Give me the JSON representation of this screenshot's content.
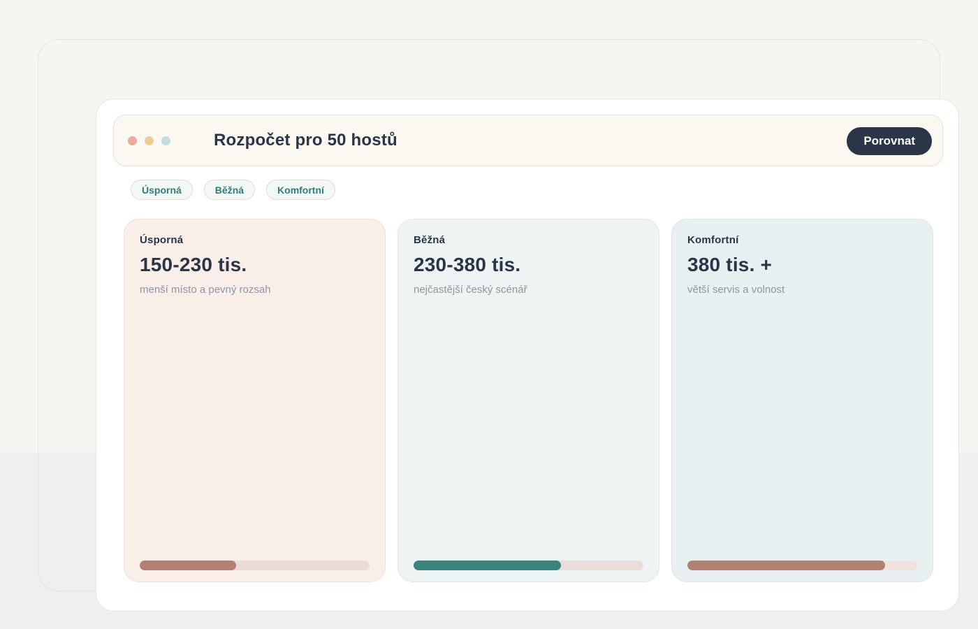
{
  "header": {
    "title": "Rozpočet pro 50 hostů",
    "compare_button_label": "Porovnat",
    "window_dots": [
      {
        "name": "pink-dot",
        "color": "#eca99c"
      },
      {
        "name": "sand-dot",
        "color": "#ecce95"
      },
      {
        "name": "blue-dot",
        "color": "#c4dce1"
      }
    ]
  },
  "filter_chips": [
    {
      "label": "Úsporná"
    },
    {
      "label": "Běžná"
    },
    {
      "label": "Komfortní"
    }
  ],
  "tiers": [
    {
      "name": "Úsporná",
      "price_range": "150-230 tis.",
      "description": "menší místo a pevný rozsah",
      "progress_percent": 42,
      "colors": {
        "bg": "#faeee8",
        "border": "#f0ded7",
        "track": "#e9dcd6",
        "fill": "#b28174"
      }
    },
    {
      "name": "Běžná",
      "price_range": "230-380 tis.",
      "description": "nejčastější český scénář",
      "progress_percent": 64,
      "colors": {
        "bg": "#eef4f3",
        "border": "#dde7e5",
        "track": "#eaddd9",
        "fill": "#3b847d"
      }
    },
    {
      "name": "Komfortní",
      "price_range": "380 tis. +",
      "description": "větší servis a volnost",
      "progress_percent": 86,
      "colors": {
        "bg": "#e9f0f2",
        "border": "#d9e5e9",
        "track": "#f0e2dd",
        "fill": "#b28174"
      }
    }
  ],
  "theme": {
    "page_bg_top": "#f7f5f0",
    "page_bg_bottom": "#eef0ef",
    "frame_border": "#dce6e2",
    "panel_bg": "#ffffff",
    "panel_border": "#e0e9e6",
    "header_bg": "#fbf7f1",
    "header_border": "#ecdfd4",
    "text_navy": "#2a3548",
    "text_muted": "#8d96a2",
    "button_bg": "#2a3548",
    "button_text": "#ffffff",
    "chip_bg": "#f3f8f6",
    "chip_border": "#e7dad2",
    "chip_text": "#2f7d76"
  }
}
